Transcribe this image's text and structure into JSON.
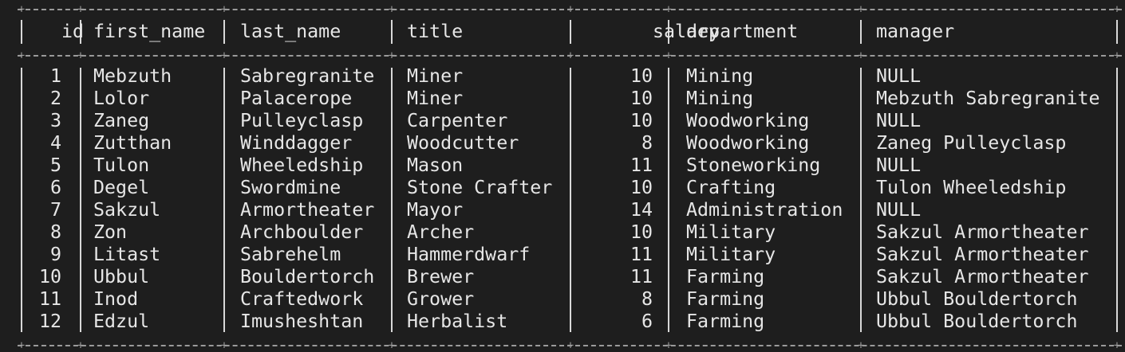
{
  "table": {
    "columns": [
      {
        "key": "id",
        "label": "id"
      },
      {
        "key": "first_name",
        "label": "first_name"
      },
      {
        "key": "last_name",
        "label": "last_name"
      },
      {
        "key": "title",
        "label": "title"
      },
      {
        "key": "salary",
        "label": "salary"
      },
      {
        "key": "department",
        "label": "department"
      },
      {
        "key": "manager",
        "label": "manager"
      }
    ],
    "rows": [
      {
        "id": "1",
        "first_name": "Mebzuth",
        "last_name": "Sabregranite",
        "title": "Miner",
        "salary": "10",
        "department": "Mining",
        "manager": "NULL"
      },
      {
        "id": "2",
        "first_name": "Lolor",
        "last_name": "Palacerope",
        "title": "Miner",
        "salary": "10",
        "department": "Mining",
        "manager": "Mebzuth Sabregranite"
      },
      {
        "id": "3",
        "first_name": "Zaneg",
        "last_name": "Pulleyclasp",
        "title": "Carpenter",
        "salary": "10",
        "department": "Woodworking",
        "manager": "NULL"
      },
      {
        "id": "4",
        "first_name": "Zutthan",
        "last_name": "Winddagger",
        "title": "Woodcutter",
        "salary": "8",
        "department": "Woodworking",
        "manager": "Zaneg Pulleyclasp"
      },
      {
        "id": "5",
        "first_name": "Tulon",
        "last_name": "Wheeledship",
        "title": "Mason",
        "salary": "11",
        "department": "Stoneworking",
        "manager": "NULL"
      },
      {
        "id": "6",
        "first_name": "Degel",
        "last_name": "Swordmine",
        "title": "Stone Crafter",
        "salary": "10",
        "department": "Crafting",
        "manager": "Tulon Wheeledship"
      },
      {
        "id": "7",
        "first_name": "Sakzul",
        "last_name": "Armortheater",
        "title": "Mayor",
        "salary": "14",
        "department": "Administration",
        "manager": "NULL"
      },
      {
        "id": "8",
        "first_name": "Zon",
        "last_name": "Archboulder",
        "title": "Archer",
        "salary": "10",
        "department": "Military",
        "manager": "Sakzul Armortheater"
      },
      {
        "id": "9",
        "first_name": "Litast",
        "last_name": "Sabrehelm",
        "title": "Hammerdwarf",
        "salary": "11",
        "department": "Military",
        "manager": "Sakzul Armortheater"
      },
      {
        "id": "10",
        "first_name": "Ubbul",
        "last_name": "Bouldertorch",
        "title": "Brewer",
        "salary": "11",
        "department": "Farming",
        "manager": "Sakzul Armortheater"
      },
      {
        "id": "11",
        "first_name": "Inod",
        "last_name": "Craftedwork",
        "title": "Grower",
        "salary": "8",
        "department": "Farming",
        "manager": "Ubbul Bouldertorch"
      },
      {
        "id": "12",
        "first_name": "Edzul",
        "last_name": "Imusheshtan",
        "title": "Herbalist",
        "salary": "6",
        "department": "Farming",
        "manager": "Ubbul Bouldertorch"
      }
    ]
  },
  "colors": {
    "background": "#1e1e1e",
    "text": "#e6e6e6",
    "border": "#9a9a9a"
  }
}
